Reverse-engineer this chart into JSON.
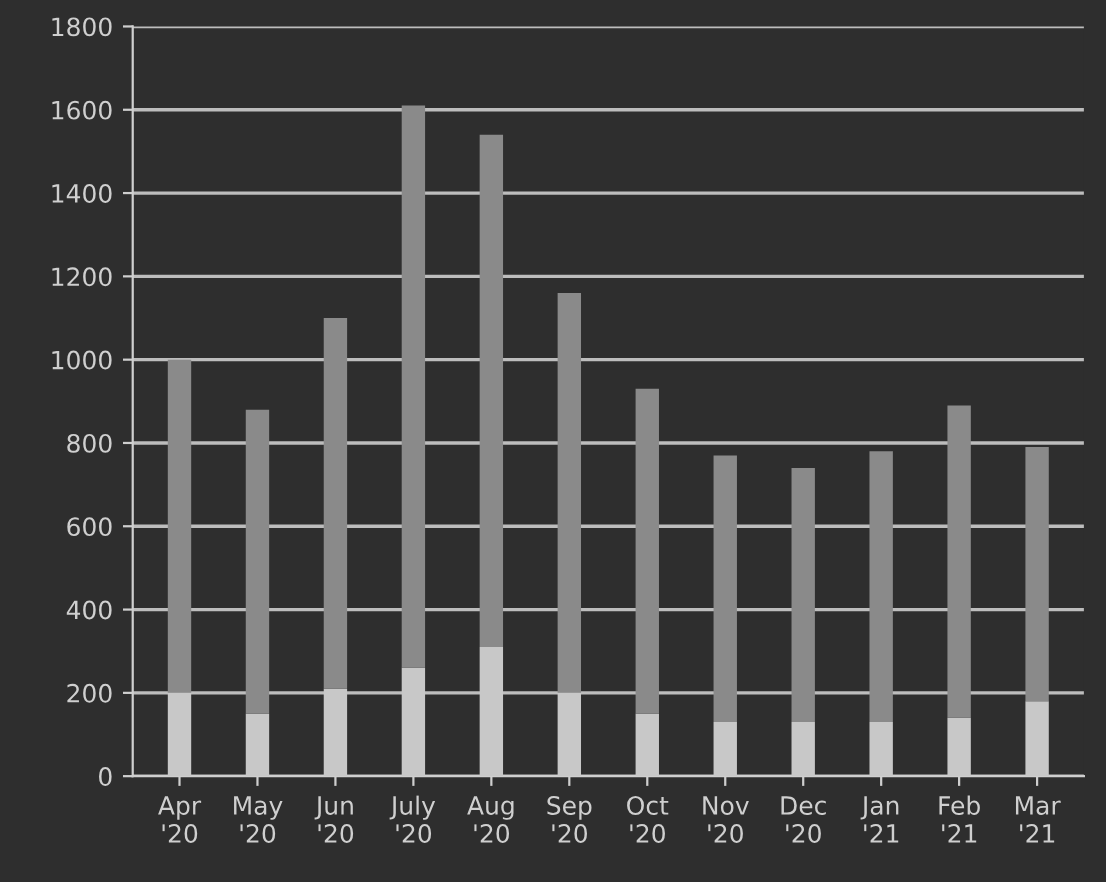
{
  "chart_data": {
    "type": "bar",
    "stacked": true,
    "categories": [
      "Apr '20",
      "May '20",
      "Jun '20",
      "July '20",
      "Aug '20",
      "Sep '20",
      "Oct '20",
      "Nov '20",
      "Dec '20",
      "Jan '21",
      "Feb '21",
      "Mar '21"
    ],
    "series": [
      {
        "color": "#c8c8c8",
        "values": [
          200,
          150,
          210,
          260,
          310,
          200,
          150,
          130,
          130,
          130,
          140,
          180
        ]
      },
      {
        "color": "#8a8a8a",
        "values": [
          800,
          730,
          890,
          1350,
          1230,
          960,
          780,
          640,
          610,
          650,
          750,
          610
        ]
      }
    ],
    "ylim": [
      0,
      1800
    ],
    "yticks": [
      0,
      200,
      400,
      600,
      800,
      1000,
      1200,
      1400,
      1600,
      1800
    ],
    "grid": "y"
  }
}
